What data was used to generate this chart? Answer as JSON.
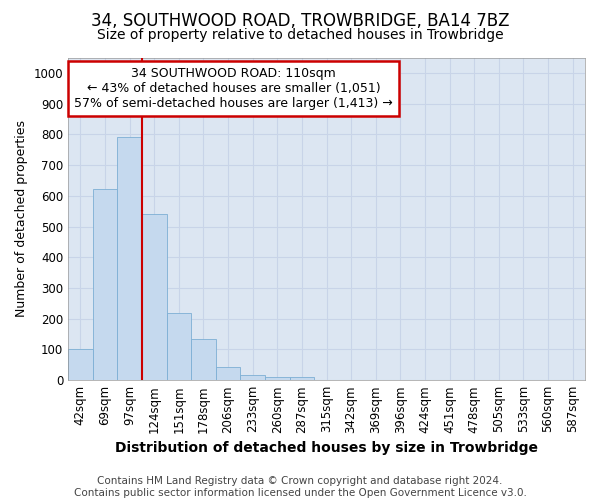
{
  "title": "34, SOUTHWOOD ROAD, TROWBRIDGE, BA14 7BZ",
  "subtitle": "Size of property relative to detached houses in Trowbridge",
  "xlabel": "Distribution of detached houses by size in Trowbridge",
  "ylabel": "Number of detached properties",
  "footer_line1": "Contains HM Land Registry data © Crown copyright and database right 2024.",
  "footer_line2": "Contains public sector information licensed under the Open Government Licence v3.0.",
  "categories": [
    "42sqm",
    "69sqm",
    "97sqm",
    "124sqm",
    "151sqm",
    "178sqm",
    "206sqm",
    "233sqm",
    "260sqm",
    "287sqm",
    "315sqm",
    "342sqm",
    "369sqm",
    "396sqm",
    "424sqm",
    "451sqm",
    "478sqm",
    "505sqm",
    "533sqm",
    "560sqm",
    "587sqm"
  ],
  "bar_heights": [
    103,
    622,
    790,
    540,
    220,
    133,
    43,
    17,
    10,
    10,
    0,
    0,
    0,
    0,
    0,
    0,
    0,
    0,
    0,
    0,
    0
  ],
  "bar_color": "#c5d9ee",
  "bar_edge_color": "#7dafd4",
  "ylim": [
    0,
    1050
  ],
  "yticks": [
    0,
    100,
    200,
    300,
    400,
    500,
    600,
    700,
    800,
    900,
    1000
  ],
  "property_label": "34 SOUTHWOOD ROAD: 110sqm",
  "annotation_line1": "← 43% of detached houses are smaller (1,051)",
  "annotation_line2": "57% of semi-detached houses are larger (1,413) →",
  "annotation_box_color": "#ffffff",
  "annotation_border_color": "#cc0000",
  "red_line_color": "#cc0000",
  "grid_color": "#c8d4e8",
  "background_color": "#dce6f2",
  "title_fontsize": 12,
  "subtitle_fontsize": 10,
  "xlabel_fontsize": 10,
  "ylabel_fontsize": 9,
  "tick_fontsize": 8.5,
  "annotation_fontsize": 9,
  "footer_fontsize": 7.5
}
